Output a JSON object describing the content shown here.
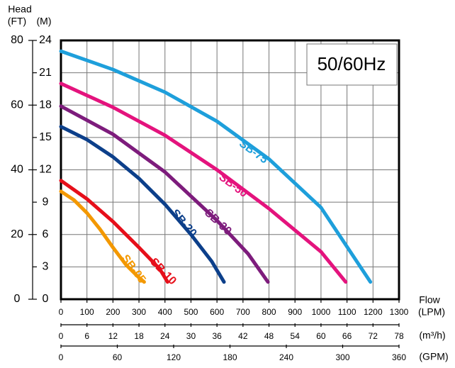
{
  "chart_data": {
    "type": "line",
    "title": "50/60Hz",
    "y_label": "Head",
    "y_unit": "(M)",
    "y2_unit": "(FT)",
    "x_label": "Flow",
    "x_unit": "(LPM)",
    "x2_unit": "(m³/h)",
    "x3_unit": "(GPM)",
    "xlim": [
      0,
      1300
    ],
    "xticks": [
      0,
      100,
      200,
      300,
      400,
      500,
      600,
      700,
      800,
      900,
      1000,
      1100,
      1200,
      1300
    ],
    "x2lim": [
      0,
      78
    ],
    "x2ticks": [
      0,
      6,
      12,
      18,
      24,
      30,
      36,
      42,
      48,
      54,
      60,
      66,
      72,
      78
    ],
    "x3lim": [
      0,
      360
    ],
    "x3ticks": [
      0,
      60,
      120,
      180,
      240,
      300,
      360
    ],
    "ylim": [
      0,
      24
    ],
    "yticks": [
      0,
      3,
      6,
      9,
      12,
      15,
      18,
      21,
      24
    ],
    "y2lim": [
      0,
      80
    ],
    "y2ticks": [
      0,
      20,
      40,
      60,
      80
    ],
    "grid": true,
    "series": [
      {
        "name": "SB-05",
        "color": "#f39800",
        "x": [
          0,
          50,
          100,
          150,
          200,
          250,
          300,
          320
        ],
        "values": [
          10,
          9.2,
          8,
          6.5,
          4.8,
          3.2,
          2,
          1.6
        ]
      },
      {
        "name": "SB-10",
        "color": "#e60f1a",
        "x": [
          0,
          100,
          200,
          300,
          380,
          410
        ],
        "values": [
          11,
          9.3,
          7.2,
          4.8,
          2.8,
          1.6
        ]
      },
      {
        "name": "SB-20",
        "color": "#0c3f8a",
        "x": [
          0,
          100,
          200,
          300,
          400,
          500,
          580,
          627
        ],
        "values": [
          16,
          14.8,
          13.2,
          11.2,
          8.8,
          6,
          3.5,
          1.6
        ]
      },
      {
        "name": "SB-30",
        "color": "#7d1c7c",
        "x": [
          0,
          200,
          400,
          600,
          720,
          796
        ],
        "values": [
          17.9,
          15.3,
          11.8,
          7.3,
          4.2,
          1.6
        ]
      },
      {
        "name": "SB-50",
        "color": "#e4137d",
        "x": [
          0,
          200,
          400,
          600,
          800,
          1000,
          1095
        ],
        "values": [
          20,
          17.8,
          15.2,
          12,
          8.4,
          4.4,
          1.6
        ]
      },
      {
        "name": "SB-75",
        "color": "#1e9fdb",
        "x": [
          0,
          200,
          400,
          600,
          800,
          1000,
          1190
        ],
        "values": [
          23,
          21.3,
          19.2,
          16.5,
          13,
          8.5,
          1.6
        ]
      }
    ]
  }
}
